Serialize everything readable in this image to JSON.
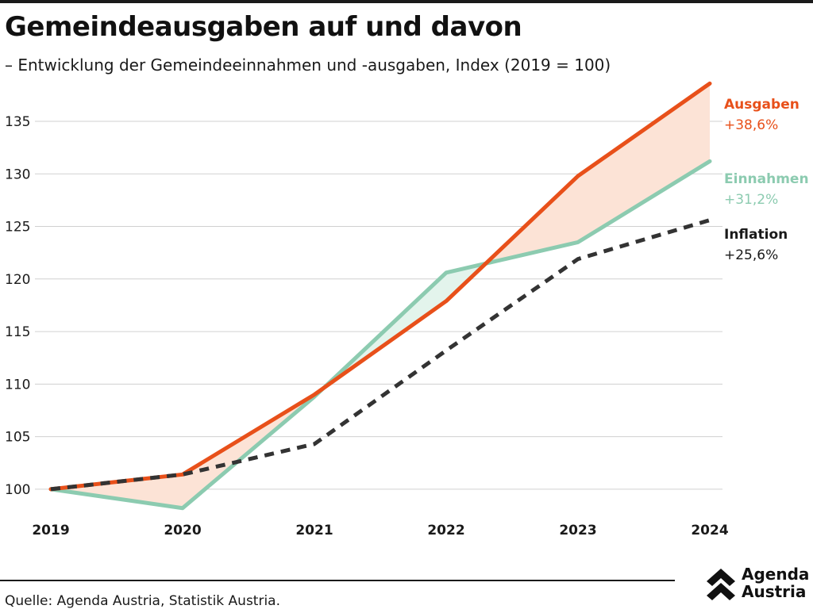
{
  "title": "Gemeindeausgaben auf und davon",
  "subtitle": "– Entwicklung der Gemeindeeinnahmen und -ausgaben, Index (2019 = 100)",
  "source": "Quelle: Agenda Austria, Statistik Austria.",
  "logo": {
    "line1": "Agenda",
    "line2": "Austria",
    "icon": "double-chevron-up-icon"
  },
  "colors": {
    "ausgaben": "#e8501a",
    "einnahmen": "#8ccbb0",
    "inflation": "#333333",
    "fill_ausgaben_above": "#fce3d6",
    "fill_einnahmen_above": "#e3f4ec",
    "grid": "#d0d0d0"
  },
  "chart_data": {
    "type": "line",
    "x": [
      "2019",
      "2020",
      "2021",
      "2022",
      "2023",
      "2024"
    ],
    "ylim": [
      97.5,
      139
    ],
    "yticks": [
      100,
      105,
      110,
      115,
      120,
      125,
      130,
      135
    ],
    "grid": true,
    "series": [
      {
        "key": "ausgaben",
        "name": "Ausgaben",
        "end_label": "+38,6%",
        "values": [
          100,
          101.4,
          109.0,
          117.9,
          129.8,
          138.6
        ],
        "style": "solid"
      },
      {
        "key": "einnahmen",
        "name": "Einnahmen",
        "end_label": "+31,2%",
        "values": [
          100,
          98.2,
          108.8,
          120.6,
          123.5,
          131.2
        ],
        "style": "solid"
      },
      {
        "key": "inflation",
        "name": "Inflation",
        "end_label": "+25,6%",
        "values": [
          100,
          101.4,
          104.3,
          113.2,
          121.9,
          125.6
        ],
        "style": "dashed"
      }
    ]
  }
}
